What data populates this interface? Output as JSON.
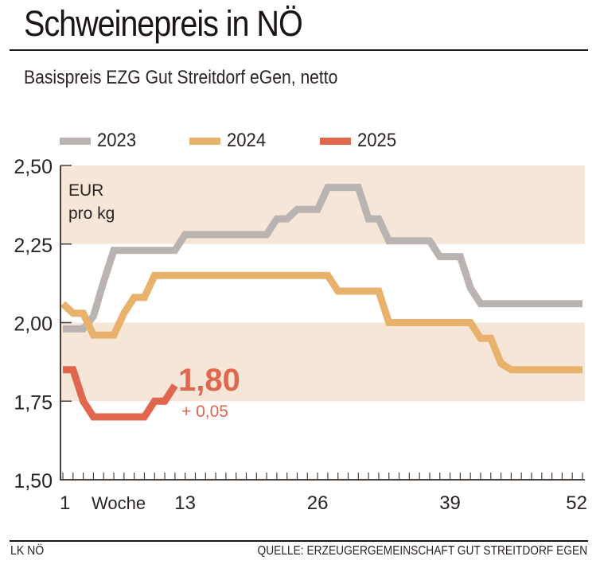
{
  "header": {
    "title": "Schweinepreis in NÖ",
    "subtitle": "Basispreis EZG Gut Streitdorf eGen, netto"
  },
  "footer": {
    "left": "LK NÖ",
    "right": "QUELLE: ERZEUGERGEMEINSCHAFT GUT STREITDORF EGEN"
  },
  "colors": {
    "band": "#f5e6d8",
    "axis": "#4a403b",
    "text": "#2b2523"
  },
  "chart_data": {
    "type": "line",
    "title": "Schweinepreis in NÖ",
    "subtitle": "Basispreis EZG Gut Streitdorf eGen, netto",
    "unit_label": [
      "EUR",
      "pro kg"
    ],
    "xlabel": "Woche",
    "ylabel": "EUR pro kg",
    "xlim": [
      1,
      52
    ],
    "ylim": [
      1.5,
      2.5
    ],
    "x_tick_labels": [
      "1",
      "13",
      "26",
      "39",
      "52"
    ],
    "x_tick_values": [
      1,
      13,
      26,
      39,
      52
    ],
    "y_tick_labels": [
      "2,50",
      "2,25",
      "2,00",
      "1,75",
      "1,50"
    ],
    "y_tick_values": [
      2.5,
      2.25,
      2.0,
      1.75,
      1.5
    ],
    "shaded_bands": [
      [
        2.25,
        2.5
      ],
      [
        1.75,
        2.0
      ]
    ],
    "legend_position": "top",
    "grid": false,
    "series": [
      {
        "name": "2023",
        "color": "#b9b4b2",
        "x": [
          1,
          2,
          3,
          4,
          5,
          6,
          7,
          8,
          9,
          10,
          11,
          12,
          13,
          14,
          15,
          16,
          17,
          18,
          19,
          20,
          21,
          22,
          23,
          24,
          25,
          26,
          27,
          28,
          29,
          30,
          31,
          32,
          33,
          34,
          35,
          36,
          37,
          38,
          39,
          40,
          41,
          42,
          43,
          44,
          45,
          46,
          47,
          48,
          49,
          50,
          51,
          52
        ],
        "values": [
          1.98,
          1.98,
          1.98,
          2.02,
          2.13,
          2.23,
          2.23,
          2.23,
          2.23,
          2.23,
          2.23,
          2.23,
          2.28,
          2.28,
          2.28,
          2.28,
          2.28,
          2.28,
          2.28,
          2.28,
          2.28,
          2.33,
          2.33,
          2.36,
          2.36,
          2.36,
          2.43,
          2.43,
          2.43,
          2.43,
          2.33,
          2.33,
          2.26,
          2.26,
          2.26,
          2.26,
          2.26,
          2.21,
          2.21,
          2.21,
          2.11,
          2.06,
          2.06,
          2.06,
          2.06,
          2.06,
          2.06,
          2.06,
          2.06,
          2.06,
          2.06,
          2.06
        ]
      },
      {
        "name": "2024",
        "color": "#e8b26c",
        "x": [
          1,
          2,
          3,
          4,
          5,
          6,
          7,
          8,
          9,
          10,
          11,
          12,
          13,
          14,
          15,
          16,
          17,
          18,
          19,
          20,
          21,
          22,
          23,
          24,
          25,
          26,
          27,
          28,
          29,
          30,
          31,
          32,
          33,
          34,
          35,
          36,
          37,
          38,
          39,
          40,
          41,
          42,
          43,
          44,
          45,
          46,
          47,
          48,
          49,
          50,
          51,
          52
        ],
        "values": [
          2.06,
          2.03,
          2.03,
          1.96,
          1.96,
          1.96,
          2.03,
          2.08,
          2.08,
          2.15,
          2.15,
          2.15,
          2.15,
          2.15,
          2.15,
          2.15,
          2.15,
          2.15,
          2.15,
          2.15,
          2.15,
          2.15,
          2.15,
          2.15,
          2.15,
          2.15,
          2.15,
          2.1,
          2.1,
          2.1,
          2.1,
          2.1,
          2.0,
          2.0,
          2.0,
          2.0,
          2.0,
          2.0,
          2.0,
          2.0,
          2.0,
          1.95,
          1.95,
          1.87,
          1.85,
          1.85,
          1.85,
          1.85,
          1.85,
          1.85,
          1.85,
          1.85
        ]
      },
      {
        "name": "2025",
        "color": "#e0664d",
        "x": [
          1,
          2,
          3,
          4,
          5,
          6,
          7,
          8,
          9,
          10,
          11,
          12
        ],
        "values": [
          1.85,
          1.85,
          1.75,
          1.7,
          1.7,
          1.7,
          1.7,
          1.7,
          1.7,
          1.75,
          1.75,
          1.8
        ]
      }
    ],
    "annotations": [
      {
        "text": "1,80",
        "series": "2025",
        "kind": "latest-value"
      },
      {
        "text": "+ 0,05",
        "series": "2025",
        "kind": "change"
      }
    ]
  }
}
